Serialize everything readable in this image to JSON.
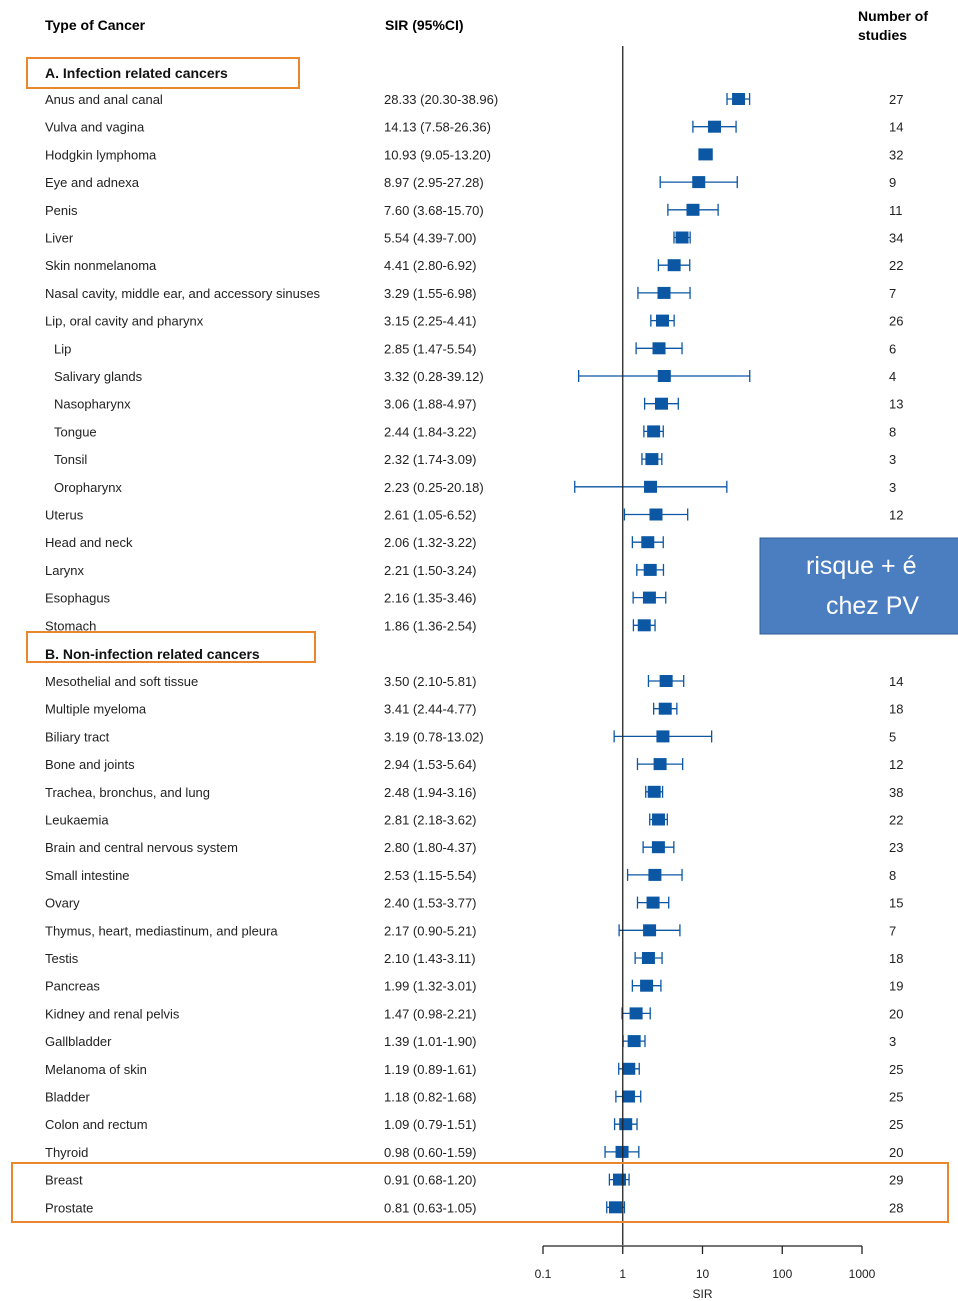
{
  "headers": {
    "type": "Type of Cancer",
    "sir": "SIR (95%CI)",
    "studies_line1": "Number of",
    "studies_line2": "studies"
  },
  "sections": {
    "a": "A. Infection related cancers",
    "b": "B. Non-infection related cancers"
  },
  "note": {
    "line1": "risque + é",
    "line2": "chez PV"
  },
  "colors": {
    "marker": "#0b57a4",
    "highlight_box": "#e8872e",
    "note_box": "#4a7ec0"
  },
  "chart_data": {
    "type": "forest",
    "x_scale": "log",
    "xlim": [
      0.1,
      1000
    ],
    "xlabel": "SIR",
    "x_ticks": [
      0.1,
      1,
      10,
      100,
      1000
    ],
    "x_tick_labels": [
      "0.1",
      "1",
      "10",
      "100",
      "1000"
    ],
    "reference_line": 1,
    "rows": [
      {
        "name": "Anus and anal canal",
        "sir": 28.33,
        "lo": 20.3,
        "hi": 38.96,
        "ci_text": "28.33 (20.30-38.96)",
        "studies": "27",
        "section": "a",
        "indent": false
      },
      {
        "name": "Vulva and vagina",
        "sir": 14.13,
        "lo": 7.58,
        "hi": 26.36,
        "ci_text": "14.13 (7.58-26.36)",
        "studies": "14",
        "section": "a",
        "indent": false
      },
      {
        "name": "Hodgkin lymphoma",
        "sir": 10.93,
        "lo": 9.05,
        "hi": 13.2,
        "ci_text": "10.93 (9.05-13.20)",
        "studies": "32",
        "section": "a",
        "indent": false
      },
      {
        "name": "Eye and adnexa",
        "sir": 8.97,
        "lo": 2.95,
        "hi": 27.28,
        "ci_text": "8.97 (2.95-27.28)",
        "studies": "9",
        "section": "a",
        "indent": false
      },
      {
        "name": "Penis",
        "sir": 7.6,
        "lo": 3.68,
        "hi": 15.7,
        "ci_text": "7.60 (3.68-15.70)",
        "studies": "11",
        "section": "a",
        "indent": false
      },
      {
        "name": "Liver",
        "sir": 5.54,
        "lo": 4.39,
        "hi": 7.0,
        "ci_text": "5.54 (4.39-7.00)",
        "studies": "34",
        "section": "a",
        "indent": false
      },
      {
        "name": "Skin nonmelanoma",
        "sir": 4.41,
        "lo": 2.8,
        "hi": 6.92,
        "ci_text": "4.41 (2.80-6.92)",
        "studies": "22",
        "section": "a",
        "indent": false
      },
      {
        "name": "Nasal cavity, middle ear, and accessory sinuses",
        "sir": 3.29,
        "lo": 1.55,
        "hi": 6.98,
        "ci_text": "3.29 (1.55-6.98)",
        "studies": "7",
        "section": "a",
        "indent": false
      },
      {
        "name": "Lip, oral cavity and pharynx",
        "sir": 3.15,
        "lo": 2.25,
        "hi": 4.41,
        "ci_text": "3.15 (2.25-4.41)",
        "studies": "26",
        "section": "a",
        "indent": false
      },
      {
        "name": "Lip",
        "sir": 2.85,
        "lo": 1.47,
        "hi": 5.54,
        "ci_text": "2.85 (1.47-5.54)",
        "studies": "6",
        "section": "a",
        "indent": true
      },
      {
        "name": "Salivary glands",
        "sir": 3.32,
        "lo": 0.28,
        "hi": 39.12,
        "ci_text": "3.32 (0.28-39.12)",
        "studies": "4",
        "section": "a",
        "indent": true
      },
      {
        "name": "Nasopharynx",
        "sir": 3.06,
        "lo": 1.88,
        "hi": 4.97,
        "ci_text": "3.06 (1.88-4.97)",
        "studies": "13",
        "section": "a",
        "indent": true
      },
      {
        "name": "Tongue",
        "sir": 2.44,
        "lo": 1.84,
        "hi": 3.22,
        "ci_text": "2.44 (1.84-3.22)",
        "studies": "8",
        "section": "a",
        "indent": true
      },
      {
        "name": "Tonsil",
        "sir": 2.32,
        "lo": 1.74,
        "hi": 3.09,
        "ci_text": "2.32 (1.74-3.09)",
        "studies": "3",
        "section": "a",
        "indent": true
      },
      {
        "name": "Oropharynx",
        "sir": 2.23,
        "lo": 0.25,
        "hi": 20.18,
        "ci_text": "2.23 (0.25-20.18)",
        "studies": "3",
        "section": "a",
        "indent": true
      },
      {
        "name": "Uterus",
        "sir": 2.61,
        "lo": 1.05,
        "hi": 6.52,
        "ci_text": "2.61 (1.05-6.52)",
        "studies": "12",
        "section": "a",
        "indent": false
      },
      {
        "name": "Head and neck",
        "sir": 2.06,
        "lo": 1.32,
        "hi": 3.22,
        "ci_text": "2.06 (1.32-3.22)",
        "studies": "",
        "section": "a",
        "indent": false
      },
      {
        "name": "Larynx",
        "sir": 2.21,
        "lo": 1.5,
        "hi": 3.24,
        "ci_text": "2.21 (1.50-3.24)",
        "studies": "",
        "section": "a",
        "indent": false
      },
      {
        "name": "Esophagus",
        "sir": 2.16,
        "lo": 1.35,
        "hi": 3.46,
        "ci_text": "2.16 (1.35-3.46)",
        "studies": "",
        "section": "a",
        "indent": false
      },
      {
        "name": "Stomach",
        "sir": 1.86,
        "lo": 1.36,
        "hi": 2.54,
        "ci_text": "1.86 (1.36-2.54)",
        "studies": "",
        "section": "a",
        "indent": false
      },
      {
        "name": "Mesothelial and soft tissue",
        "sir": 3.5,
        "lo": 2.1,
        "hi": 5.81,
        "ci_text": "3.50 (2.10-5.81)",
        "studies": "14",
        "section": "b",
        "indent": false
      },
      {
        "name": "Multiple myeloma",
        "sir": 3.41,
        "lo": 2.44,
        "hi": 4.77,
        "ci_text": "3.41 (2.44-4.77)",
        "studies": "18",
        "section": "b",
        "indent": false
      },
      {
        "name": "Biliary tract",
        "sir": 3.19,
        "lo": 0.78,
        "hi": 13.02,
        "ci_text": "3.19 (0.78-13.02)",
        "studies": "5",
        "section": "b",
        "indent": false
      },
      {
        "name": "Bone and joints",
        "sir": 2.94,
        "lo": 1.53,
        "hi": 5.64,
        "ci_text": "2.94 (1.53-5.64)",
        "studies": "12",
        "section": "b",
        "indent": false
      },
      {
        "name": "Trachea, bronchus, and lung",
        "sir": 2.48,
        "lo": 1.94,
        "hi": 3.16,
        "ci_text": "2.48 (1.94-3.16)",
        "studies": "38",
        "section": "b",
        "indent": false
      },
      {
        "name": "Leukaemia",
        "sir": 2.81,
        "lo": 2.18,
        "hi": 3.62,
        "ci_text": "2.81 (2.18-3.62)",
        "studies": "22",
        "section": "b",
        "indent": false
      },
      {
        "name": "Brain and central nervous system",
        "sir": 2.8,
        "lo": 1.8,
        "hi": 4.37,
        "ci_text": "2.80 (1.80-4.37)",
        "studies": "23",
        "section": "b",
        "indent": false
      },
      {
        "name": "Small intestine",
        "sir": 2.53,
        "lo": 1.15,
        "hi": 5.54,
        "ci_text": "2.53 (1.15-5.54)",
        "studies": "8",
        "section": "b",
        "indent": false
      },
      {
        "name": "Ovary",
        "sir": 2.4,
        "lo": 1.53,
        "hi": 3.77,
        "ci_text": "2.40 (1.53-3.77)",
        "studies": "15",
        "section": "b",
        "indent": false
      },
      {
        "name": "Thymus, heart, mediastinum, and pleura",
        "sir": 2.17,
        "lo": 0.9,
        "hi": 5.21,
        "ci_text": "2.17 (0.90-5.21)",
        "studies": "7",
        "section": "b",
        "indent": false
      },
      {
        "name": "Testis",
        "sir": 2.1,
        "lo": 1.43,
        "hi": 3.11,
        "ci_text": "2.10 (1.43-3.11)",
        "studies": "18",
        "section": "b",
        "indent": false
      },
      {
        "name": "Pancreas",
        "sir": 1.99,
        "lo": 1.32,
        "hi": 3.01,
        "ci_text": "1.99 (1.32-3.01)",
        "studies": "19",
        "section": "b",
        "indent": false
      },
      {
        "name": "Kidney and renal pelvis",
        "sir": 1.47,
        "lo": 0.98,
        "hi": 2.21,
        "ci_text": "1.47 (0.98-2.21)",
        "studies": "20",
        "section": "b",
        "indent": false
      },
      {
        "name": "Gallbladder",
        "sir": 1.39,
        "lo": 1.01,
        "hi": 1.9,
        "ci_text": "1.39 (1.01-1.90)",
        "studies": "3",
        "section": "b",
        "indent": false
      },
      {
        "name": "Melanoma of skin",
        "sir": 1.19,
        "lo": 0.89,
        "hi": 1.61,
        "ci_text": "1.19 (0.89-1.61)",
        "studies": "25",
        "section": "b",
        "indent": false
      },
      {
        "name": "Bladder",
        "sir": 1.18,
        "lo": 0.82,
        "hi": 1.68,
        "ci_text": "1.18 (0.82-1.68)",
        "studies": "25",
        "section": "b",
        "indent": false
      },
      {
        "name": "Colon and rectum",
        "sir": 1.09,
        "lo": 0.79,
        "hi": 1.51,
        "ci_text": "1.09 (0.79-1.51)",
        "studies": "25",
        "section": "b",
        "indent": false
      },
      {
        "name": "Thyroid",
        "sir": 0.98,
        "lo": 0.6,
        "hi": 1.59,
        "ci_text": "0.98 (0.60-1.59)",
        "studies": "20",
        "section": "b",
        "indent": false
      },
      {
        "name": "Breast",
        "sir": 0.91,
        "lo": 0.68,
        "hi": 1.2,
        "ci_text": "0.91 (0.68-1.20)",
        "studies": "29",
        "section": "b",
        "indent": false
      },
      {
        "name": "Prostate",
        "sir": 0.81,
        "lo": 0.63,
        "hi": 1.05,
        "ci_text": "0.81 (0.63-1.05)",
        "studies": "28",
        "section": "b",
        "indent": false
      }
    ]
  }
}
